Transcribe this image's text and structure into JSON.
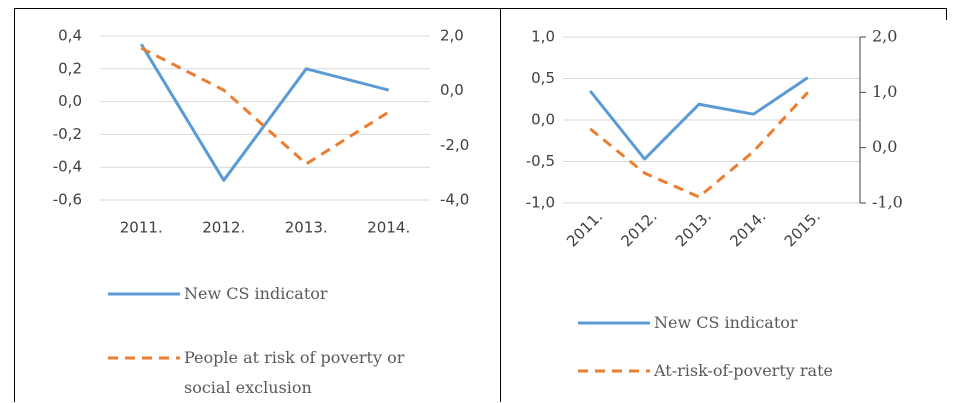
{
  "chart_data": [
    {
      "type": "line",
      "categories": [
        "2011.",
        "2012.",
        "2013.",
        "2014."
      ],
      "ylim": [
        -0.6,
        0.4
      ],
      "yticks": [
        {
          "value": -0.6,
          "label": "-0,6"
        },
        {
          "value": -0.4,
          "label": "-0,4"
        },
        {
          "value": -0.2,
          "label": "-0,2"
        },
        {
          "value": 0,
          "label": "0,0"
        },
        {
          "value": 0.2,
          "label": "0,2"
        },
        {
          "value": 0.4,
          "label": "0,4"
        }
      ],
      "y2lim": [
        -4,
        2
      ],
      "y2ticks": [
        {
          "value": -4,
          "label": "-4,0"
        },
        {
          "value": -2,
          "label": "-2,0"
        },
        {
          "value": 0,
          "label": "0,0"
        },
        {
          "value": 2,
          "label": "2,0"
        }
      ],
      "grid": true,
      "series": [
        {
          "name": "New CS indicator",
          "color": "#5b9bd5",
          "dashed": false,
          "values": [
            0.35,
            -0.48,
            0.2,
            0.07
          ]
        },
        {
          "name": "People at risk of poverty or social exclusion",
          "color": "#ed7d31",
          "dashed": true,
          "axis": "y2",
          "values": [
            1.56,
            0.02,
            -2.68,
            -0.78
          ]
        }
      ]
    },
    {
      "type": "line",
      "categories": [
        "2011.",
        "2012.",
        "2013.",
        "2014.",
        "2015."
      ],
      "ylim": [
        -1,
        1
      ],
      "yticks": [
        {
          "value": -1,
          "label": "-1,0"
        },
        {
          "value": -0.5,
          "label": "-0,5"
        },
        {
          "value": 0,
          "label": "0,0"
        },
        {
          "value": 0.5,
          "label": "0,5"
        },
        {
          "value": 1,
          "label": "1,0"
        }
      ],
      "y2lim": [
        -1,
        2
      ],
      "y2ticks": [
        {
          "value": -1,
          "label": "-1,0"
        },
        {
          "value": 0,
          "label": "0,0"
        },
        {
          "value": 1,
          "label": "1,0"
        },
        {
          "value": 2,
          "label": "2,0"
        }
      ],
      "grid": true,
      "series": [
        {
          "name": "New CS indicator",
          "color": "#5b9bd5",
          "dashed": false,
          "values": [
            0.35,
            -0.47,
            0.19,
            0.07,
            0.51
          ]
        },
        {
          "name": "At-risk-of-poverty rate",
          "color": "#ed7d31",
          "dashed": true,
          "axis": "y2",
          "values": [
            0.34,
            -0.46,
            -0.89,
            -0.07,
            1.0
          ]
        }
      ]
    }
  ]
}
